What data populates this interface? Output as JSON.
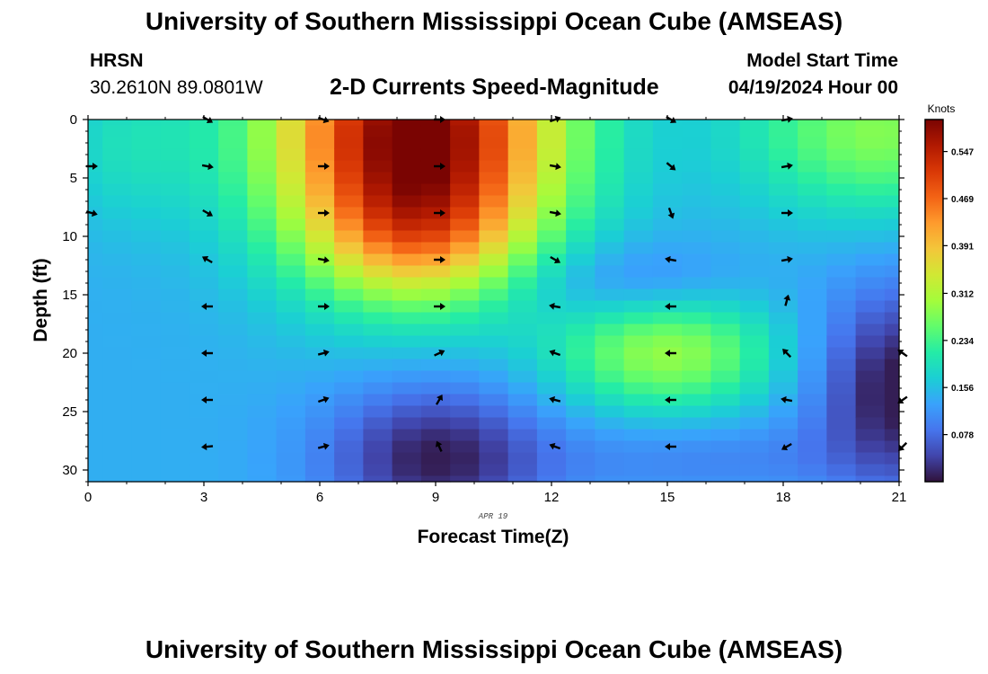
{
  "page": {
    "title_top": "University of Southern Mississippi Ocean Cube (AMSEAS)",
    "title_bottom": "University of Southern Mississippi Ocean Cube (AMSEAS)",
    "station": "HRSN",
    "coordinates": "30.2610N  89.0801W",
    "chart_title": "2-D Currents Speed-Magnitude",
    "model_start_label": "Model Start Time",
    "model_start_date": "04/19/2024 Hour 00"
  },
  "chart_data": {
    "type": "heatmap",
    "title": "2-D Currents Speed-Magnitude",
    "xlabel": "Forecast Time(Z)",
    "ylabel": "Depth (ft)",
    "x_ticks": [
      0,
      3,
      6,
      9,
      12,
      15,
      18,
      21
    ],
    "y_ticks": [
      0,
      5,
      10,
      15,
      20,
      25,
      30
    ],
    "xlim": [
      0,
      21
    ],
    "ylim": [
      0,
      31
    ],
    "date_label": "APR 19",
    "colorbar": {
      "units": "Knots",
      "range": [
        0.0,
        0.6
      ],
      "tick_values": [
        0.547,
        0.469,
        0.391,
        0.312,
        0.234,
        0.156,
        0.078
      ],
      "tick_labels": [
        "0.547",
        "0.469",
        "0.391",
        "0.312",
        "0.234",
        "0.156",
        "0.078"
      ],
      "colors": [
        "#30123b",
        "#4145ab",
        "#4675ed",
        "#39a2fc",
        "#1bcfd4",
        "#24eca6",
        "#61fc6c",
        "#a4fc3b",
        "#d1e834",
        "#f3c63a",
        "#fe9b2d",
        "#f36315",
        "#d93806",
        "#b11901",
        "#7a0402"
      ]
    },
    "x_grid": [
      0,
      0.75,
      1.5,
      2.25,
      3,
      3.75,
      4.5,
      5.25,
      6,
      6.75,
      7.5,
      8.25,
      9,
      9.75,
      10.5,
      11.25,
      12,
      12.75,
      13.5,
      14.25,
      15,
      15.75,
      16.5,
      17.25,
      18,
      18.75,
      19.5,
      20.25,
      21
    ],
    "depth_grid": [
      0,
      1,
      2,
      3,
      4,
      5,
      6,
      7,
      8,
      9,
      10,
      11,
      12,
      13,
      14,
      15,
      16,
      17,
      18,
      19,
      20,
      21,
      22,
      23,
      24,
      25,
      26,
      27,
      28,
      29,
      30,
      31
    ],
    "speed_model": {
      "units": "knots",
      "baseline": 0.14,
      "sources": [
        {
          "type": "hot",
          "center_hour": 8.5,
          "center_depth": 1,
          "amplitude": 0.47,
          "spread_hours": 2.6,
          "spread_depth": 8
        },
        {
          "type": "hot",
          "center_hour": 8.5,
          "center_depth": 10,
          "amplitude": 0.12,
          "spread_hours": 1.8,
          "spread_depth": 4
        },
        {
          "type": "hot",
          "center_hour": 15.0,
          "center_depth": 20,
          "amplitude": 0.15,
          "spread_hours": 2.0,
          "spread_depth": 3.5
        },
        {
          "type": "hot",
          "center_hour": 20.5,
          "center_depth": 1,
          "amplitude": 0.14,
          "spread_hours": 2.5,
          "spread_depth": 5
        },
        {
          "type": "hot",
          "center_hour": 1.0,
          "center_depth": 2,
          "amplitude": 0.05,
          "spread_hours": 1.5,
          "spread_depth": 5
        },
        {
          "type": "cold",
          "center_hour": 9.0,
          "center_depth": 29,
          "amplitude": 0.13,
          "spread_hours": 2.0,
          "spread_depth": 4.5
        },
        {
          "type": "cold",
          "center_hour": 21.0,
          "center_depth": 23,
          "amplitude": 0.14,
          "spread_hours": 1.5,
          "spread_depth": 6
        },
        {
          "type": "cold",
          "center_hour": 14.0,
          "center_depth": 14,
          "amplitude": 0.05,
          "spread_hours": 2.0,
          "spread_depth": 2.5
        },
        {
          "type": "cold",
          "center_hour": 16.0,
          "center_depth": 29,
          "amplitude": 0.04,
          "spread_hours": 3.0,
          "spread_depth": 2.5
        }
      ]
    },
    "vectors": [
      {
        "hour": 0,
        "depth": 4,
        "angle_deg": 0
      },
      {
        "hour": 0,
        "depth": 8,
        "angle_deg": 15
      },
      {
        "hour": 3,
        "depth": 0,
        "angle_deg": 30
      },
      {
        "hour": 3,
        "depth": 4,
        "angle_deg": 10
      },
      {
        "hour": 3,
        "depth": 8,
        "angle_deg": 30
      },
      {
        "hour": 3,
        "depth": 12,
        "angle_deg": 210
      },
      {
        "hour": 3,
        "depth": 16,
        "angle_deg": 180
      },
      {
        "hour": 3,
        "depth": 20,
        "angle_deg": 180
      },
      {
        "hour": 3,
        "depth": 24,
        "angle_deg": 180
      },
      {
        "hour": 3,
        "depth": 28,
        "angle_deg": 175
      },
      {
        "hour": 6,
        "depth": 0,
        "angle_deg": 20
      },
      {
        "hour": 6,
        "depth": 4,
        "angle_deg": 0
      },
      {
        "hour": 6,
        "depth": 8,
        "angle_deg": 0
      },
      {
        "hour": 6,
        "depth": 12,
        "angle_deg": 10
      },
      {
        "hour": 6,
        "depth": 16,
        "angle_deg": 0
      },
      {
        "hour": 6,
        "depth": 20,
        "angle_deg": 345
      },
      {
        "hour": 6,
        "depth": 24,
        "angle_deg": 340
      },
      {
        "hour": 6,
        "depth": 28,
        "angle_deg": 345
      },
      {
        "hour": 9,
        "depth": 0,
        "angle_deg": 0
      },
      {
        "hour": 9,
        "depth": 4,
        "angle_deg": 0
      },
      {
        "hour": 9,
        "depth": 8,
        "angle_deg": 0
      },
      {
        "hour": 9,
        "depth": 12,
        "angle_deg": 0
      },
      {
        "hour": 9,
        "depth": 16,
        "angle_deg": 0
      },
      {
        "hour": 9,
        "depth": 20,
        "angle_deg": 335
      },
      {
        "hour": 9,
        "depth": 24,
        "angle_deg": 300
      },
      {
        "hour": 9,
        "depth": 28,
        "angle_deg": 245
      },
      {
        "hour": 12,
        "depth": 0,
        "angle_deg": 340
      },
      {
        "hour": 12,
        "depth": 4,
        "angle_deg": 10
      },
      {
        "hour": 12,
        "depth": 8,
        "angle_deg": 10
      },
      {
        "hour": 12,
        "depth": 12,
        "angle_deg": 30
      },
      {
        "hour": 12,
        "depth": 16,
        "angle_deg": 190
      },
      {
        "hour": 12,
        "depth": 20,
        "angle_deg": 200
      },
      {
        "hour": 12,
        "depth": 24,
        "angle_deg": 195
      },
      {
        "hour": 12,
        "depth": 28,
        "angle_deg": 200
      },
      {
        "hour": 15,
        "depth": 0,
        "angle_deg": 30
      },
      {
        "hour": 15,
        "depth": 4,
        "angle_deg": 40
      },
      {
        "hour": 15,
        "depth": 8,
        "angle_deg": 70
      },
      {
        "hour": 15,
        "depth": 12,
        "angle_deg": 190
      },
      {
        "hour": 15,
        "depth": 16,
        "angle_deg": 180
      },
      {
        "hour": 15,
        "depth": 20,
        "angle_deg": 180
      },
      {
        "hour": 15,
        "depth": 24,
        "angle_deg": 180
      },
      {
        "hour": 15,
        "depth": 28,
        "angle_deg": 180
      },
      {
        "hour": 18,
        "depth": 0,
        "angle_deg": 350
      },
      {
        "hour": 18,
        "depth": 4,
        "angle_deg": 350
      },
      {
        "hour": 18,
        "depth": 8,
        "angle_deg": 0
      },
      {
        "hour": 18,
        "depth": 12,
        "angle_deg": 350
      },
      {
        "hour": 18,
        "depth": 15.5,
        "angle_deg": 285
      },
      {
        "hour": 18,
        "depth": 20,
        "angle_deg": 225
      },
      {
        "hour": 18,
        "depth": 24,
        "angle_deg": 190
      },
      {
        "hour": 18,
        "depth": 28,
        "angle_deg": 150
      },
      {
        "hour": 21,
        "depth": 20,
        "angle_deg": 215
      },
      {
        "hour": 21,
        "depth": 24,
        "angle_deg": 145
      },
      {
        "hour": 21,
        "depth": 28,
        "angle_deg": 135
      }
    ]
  }
}
